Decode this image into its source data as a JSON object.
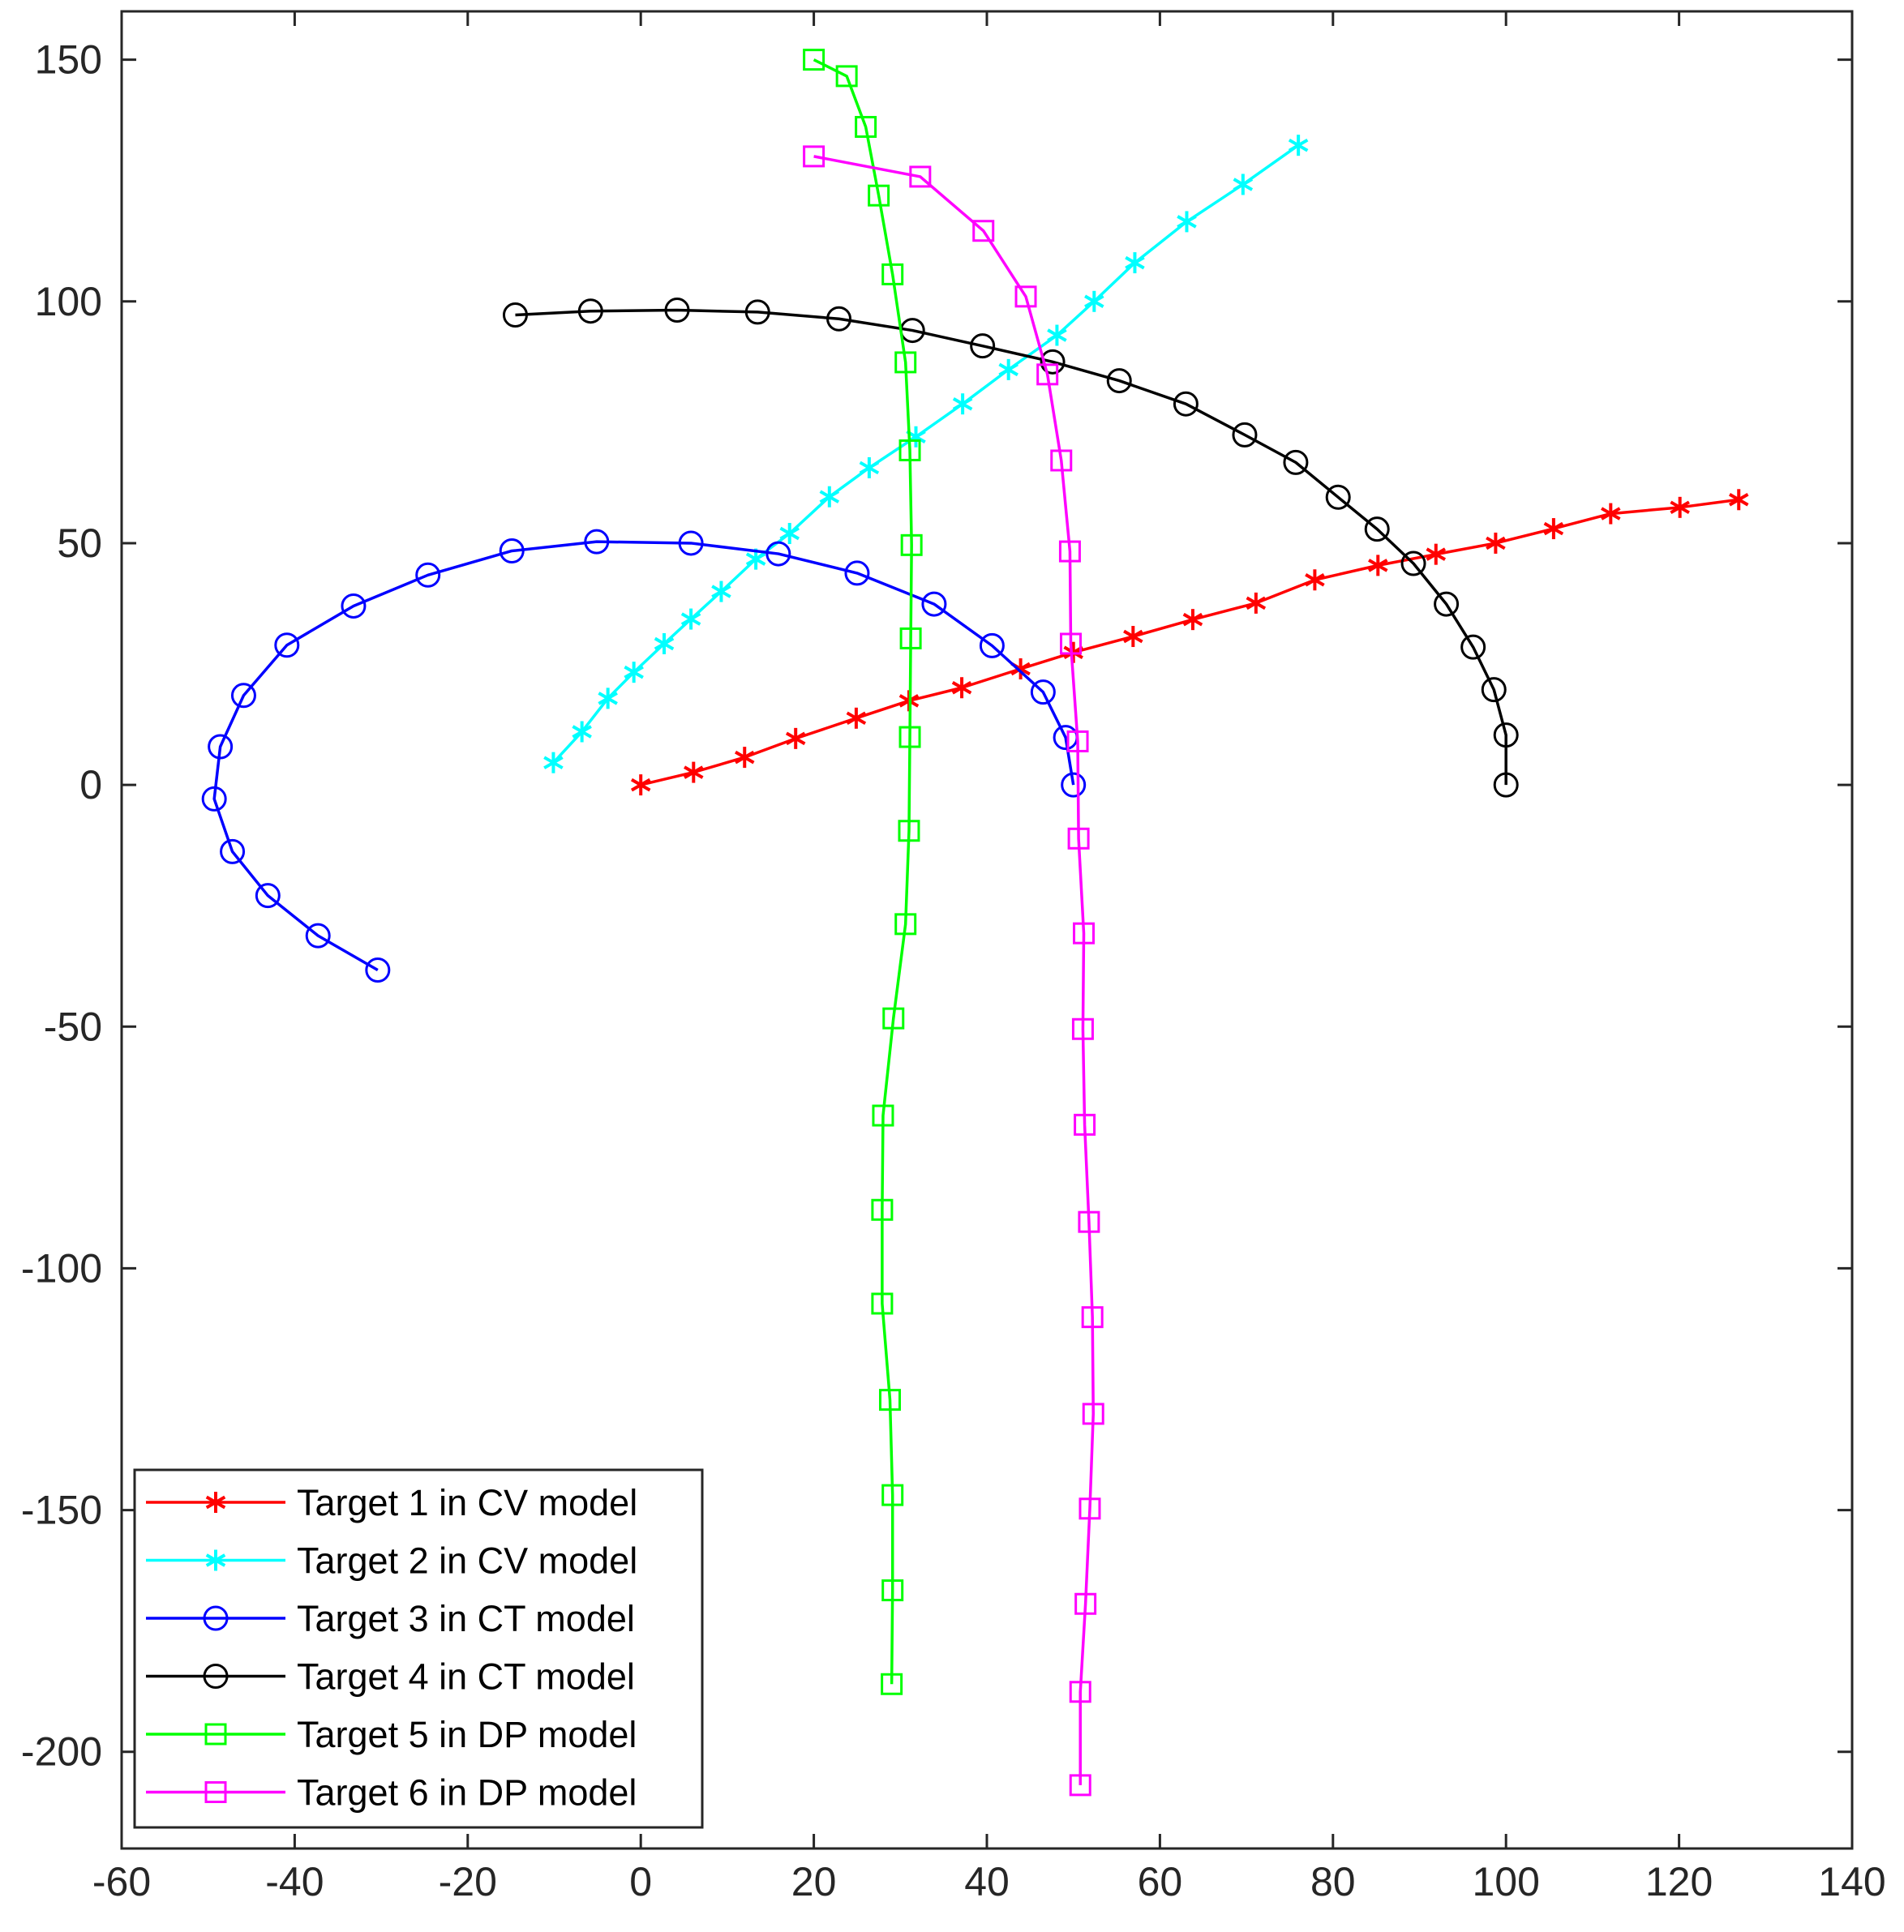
{
  "chart_data": {
    "type": "line",
    "title": "",
    "xlabel": "",
    "ylabel": "",
    "xlim": [
      -60,
      140
    ],
    "ylim": [
      -220,
      160
    ],
    "x_ticks": [
      -60,
      -40,
      -20,
      0,
      20,
      40,
      60,
      80,
      100,
      120,
      140
    ],
    "y_ticks": [
      -200,
      -150,
      -100,
      -50,
      0,
      50,
      100,
      150
    ],
    "grid": false,
    "legend_position": "bottom-left",
    "series": [
      {
        "name": "Target 1 in CV model",
        "color": "#ff0000",
        "marker": "asterisk",
        "points": [
          [
            0,
            0
          ],
          [
            6.1,
            2.6
          ],
          [
            12.0,
            5.7
          ],
          [
            17.9,
            9.6
          ],
          [
            24.9,
            13.8
          ],
          [
            31.0,
            17.4
          ],
          [
            37.1,
            20.1
          ],
          [
            43.9,
            24.0
          ],
          [
            50.0,
            27.4
          ],
          [
            56.9,
            30.7
          ],
          [
            63.8,
            34.2
          ],
          [
            71.1,
            37.6
          ],
          [
            77.9,
            42.4
          ],
          [
            85.2,
            45.4
          ],
          [
            91.9,
            47.7
          ],
          [
            98.8,
            50.0
          ],
          [
            105.5,
            53.0
          ],
          [
            112.1,
            56.1
          ],
          [
            120.1,
            57.4
          ],
          [
            126.9,
            59.0
          ]
        ]
      },
      {
        "name": "Target 2 in CV model",
        "color": "#00ffff",
        "marker": "asterisk",
        "points": [
          [
            -10.1,
            4.6
          ],
          [
            -6.8,
            11.0
          ],
          [
            -3.8,
            17.9
          ],
          [
            -0.8,
            23.3
          ],
          [
            2.7,
            29.2
          ],
          [
            5.8,
            34.3
          ],
          [
            9.3,
            40.0
          ],
          [
            13.3,
            46.7
          ],
          [
            17.2,
            52.0
          ],
          [
            21.8,
            59.6
          ],
          [
            26.4,
            65.6
          ],
          [
            31.8,
            72.0
          ],
          [
            37.2,
            78.8
          ],
          [
            42.5,
            85.9
          ],
          [
            48.1,
            93.0
          ],
          [
            52.4,
            100.0
          ],
          [
            57.1,
            108.0
          ],
          [
            63.1,
            116.5
          ],
          [
            69.6,
            124.2
          ],
          [
            76.0,
            132.3
          ]
        ]
      },
      {
        "name": "Target 3 in CT model",
        "color": "#0000ff",
        "marker": "circle",
        "points": [
          [
            50.0,
            0
          ],
          [
            49.1,
            9.8
          ],
          [
            46.5,
            19.2
          ],
          [
            40.6,
            28.8
          ],
          [
            33.9,
            37.4
          ],
          [
            25.0,
            43.8
          ],
          [
            15.9,
            47.8
          ],
          [
            5.8,
            50.0
          ],
          [
            -5.1,
            50.3
          ],
          [
            -14.9,
            48.4
          ],
          [
            -24.6,
            43.4
          ],
          [
            -33.2,
            37.0
          ],
          [
            -40.9,
            28.9
          ],
          [
            -45.9,
            18.5
          ],
          [
            -48.6,
            7.9
          ],
          [
            -49.3,
            -2.9
          ],
          [
            -47.2,
            -13.8
          ],
          [
            -43.1,
            -22.9
          ],
          [
            -37.3,
            -31.2
          ],
          [
            -30.4,
            -38.3
          ]
        ]
      },
      {
        "name": "Target 4 in CT model",
        "color": "#000000",
        "marker": "circle",
        "points": [
          [
            100.0,
            0
          ],
          [
            100.0,
            10.3
          ],
          [
            98.6,
            19.7
          ],
          [
            96.2,
            28.5
          ],
          [
            93.1,
            37.4
          ],
          [
            89.3,
            45.8
          ],
          [
            85.1,
            52.9
          ],
          [
            80.6,
            59.5
          ],
          [
            75.7,
            66.7
          ],
          [
            69.8,
            72.4
          ],
          [
            63.0,
            78.8
          ],
          [
            55.3,
            83.6
          ],
          [
            47.6,
            87.5
          ],
          [
            39.5,
            90.8
          ],
          [
            31.4,
            94.0
          ],
          [
            22.9,
            96.4
          ],
          [
            13.5,
            97.8
          ],
          [
            4.2,
            98.2
          ],
          [
            -5.8,
            98.0
          ],
          [
            -14.5,
            97.2
          ]
        ]
      },
      {
        "name": "Target 5 in DP model",
        "color": "#00ff00",
        "marker": "square",
        "points": [
          [
            20.0,
            150.0
          ],
          [
            23.8,
            146.6
          ],
          [
            26.0,
            136.1
          ],
          [
            27.5,
            121.9
          ],
          [
            29.1,
            105.6
          ],
          [
            30.6,
            87.4
          ],
          [
            31.1,
            69.2
          ],
          [
            31.3,
            49.6
          ],
          [
            31.2,
            30.3
          ],
          [
            31.1,
            9.9
          ],
          [
            31.0,
            -9.5
          ],
          [
            30.6,
            -28.8
          ],
          [
            29.2,
            -48.3
          ],
          [
            28.0,
            -68.4
          ],
          [
            27.9,
            -87.9
          ],
          [
            27.9,
            -107.3
          ],
          [
            28.8,
            -127.2
          ],
          [
            29.1,
            -146.9
          ],
          [
            29.1,
            -166.6
          ],
          [
            29.0,
            -186.0
          ]
        ]
      },
      {
        "name": "Target 6 in DP model",
        "color": "#ff00ff",
        "marker": "square",
        "points": [
          [
            20.0,
            130.0
          ],
          [
            32.3,
            125.8
          ],
          [
            39.6,
            114.6
          ],
          [
            44.5,
            101.0
          ],
          [
            47.0,
            84.9
          ],
          [
            48.6,
            67.1
          ],
          [
            49.6,
            48.3
          ],
          [
            49.7,
            29.2
          ],
          [
            50.5,
            9.0
          ],
          [
            50.6,
            -11.1
          ],
          [
            51.2,
            -30.7
          ],
          [
            51.1,
            -50.5
          ],
          [
            51.3,
            -70.3
          ],
          [
            51.8,
            -90.4
          ],
          [
            52.2,
            -110.1
          ],
          [
            52.3,
            -130.1
          ],
          [
            51.9,
            -149.7
          ],
          [
            51.4,
            -169.4
          ],
          [
            50.8,
            -187.6
          ],
          [
            50.8,
            -206.9
          ]
        ]
      }
    ]
  }
}
